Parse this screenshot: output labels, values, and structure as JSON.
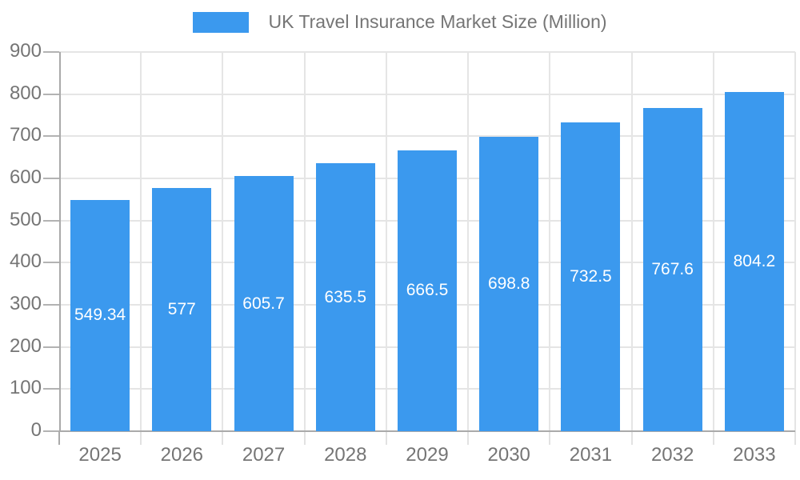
{
  "legend": {
    "label": "UK Travel Insurance Market Size (Million)"
  },
  "chart_data": {
    "type": "bar",
    "title": "UK Travel Insurance Market Size (Million)",
    "legend_entries": [
      "UK Travel Insurance Market Size (Million)"
    ],
    "legend_position": "top",
    "categories": [
      "2025",
      "2026",
      "2027",
      "2028",
      "2029",
      "2030",
      "2031",
      "2032",
      "2033"
    ],
    "values": [
      549.34,
      577,
      605.7,
      635.5,
      666.5,
      698.8,
      732.5,
      767.6,
      804.2
    ],
    "value_labels": [
      "549.34",
      "577",
      "605.7",
      "635.5",
      "666.5",
      "698.8",
      "732.5",
      "767.6",
      "804.2"
    ],
    "xlabel": "",
    "ylabel": "",
    "ylim": [
      0,
      900
    ],
    "ytick_interval": 100,
    "ytick_labels": [
      "0",
      "100",
      "200",
      "300",
      "400",
      "500",
      "600",
      "700",
      "800",
      "900"
    ],
    "grid": true,
    "colors": {
      "bar": "#3B99EE",
      "grid_line": "#E5E5E5",
      "axis_line": "#AAAAAA",
      "tick_y": "#B3B3B3",
      "tick_x": "#E2E2E2",
      "axis_text": "#757575",
      "value_text": "#FFFFFF"
    }
  }
}
